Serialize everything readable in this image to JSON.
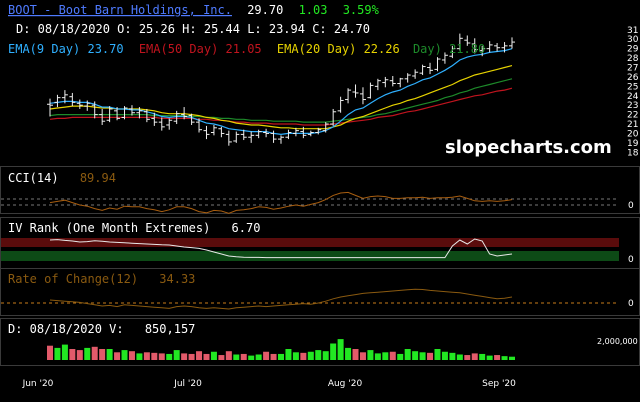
{
  "header": {
    "ticker_name": "BOOT - Boot Barn Holdings, Inc.",
    "last": "29.70",
    "change": "1.03",
    "change_pct": "3.59%",
    "date_line": "D: 08/18/2020 O: 25.26 H: 25.44 L: 23.94 C: 24.70"
  },
  "legend": {
    "ema9": "EMA(9 Day) 23.70",
    "ema50": "EMA(50 Day) 21.05",
    "ema20": "EMA(20 Day) 22.26",
    "ema100": "Day) 21.80"
  },
  "watermark": "slopecharts.com",
  "panels": {
    "cci": {
      "label": "CCI(14)",
      "value": "89.94",
      "axis": "0"
    },
    "iv": {
      "label": "IV Rank (One Month Extremes)",
      "value": "6.70",
      "axis": "0"
    },
    "roc": {
      "label": "Rate of Change(12)",
      "value": "34.33",
      "axis": "0"
    },
    "vol": {
      "label": "D: 08/18/2020 V:",
      "value": "850,157",
      "axis": "2,000,000"
    }
  },
  "colors": {
    "ema9": "#2fb0ff",
    "ema20": "#e6d200",
    "ema50": "#c0141e",
    "ema100": "#1d8a2a",
    "up": "#22e822",
    "down": "#e25a6a",
    "title": "#4f7bff"
  },
  "chart_data": {
    "type": "candlestick",
    "x_labels": [
      "Jun '20",
      "Jul '20",
      "Aug '20",
      "Sep '20"
    ],
    "y_ticks": [
      18,
      19,
      20,
      21,
      22,
      23,
      24,
      25,
      26,
      27,
      28,
      29,
      30,
      31
    ],
    "ylim": [
      17.5,
      31.3
    ],
    "ohlc": [
      [
        23.1,
        23.7,
        21.8,
        23.0
      ],
      [
        23.3,
        24.1,
        22.8,
        23.8
      ],
      [
        23.8,
        24.6,
        23.2,
        24.1
      ],
      [
        23.9,
        24.3,
        22.9,
        23.3
      ],
      [
        23.2,
        23.6,
        22.6,
        23.0
      ],
      [
        22.9,
        23.5,
        22.4,
        23.2
      ],
      [
        23.0,
        23.4,
        21.6,
        22.0
      ],
      [
        22.0,
        22.6,
        20.9,
        21.3
      ],
      [
        21.4,
        22.9,
        21.2,
        22.6
      ],
      [
        22.4,
        22.8,
        21.4,
        21.6
      ],
      [
        21.7,
        22.9,
        21.5,
        22.7
      ],
      [
        22.6,
        23.0,
        21.9,
        22.2
      ],
      [
        22.2,
        22.8,
        21.6,
        22.4
      ],
      [
        22.3,
        22.6,
        21.2,
        21.5
      ],
      [
        21.6,
        22.2,
        20.8,
        21.2
      ],
      [
        21.2,
        21.7,
        20.3,
        20.7
      ],
      [
        20.9,
        21.6,
        20.4,
        21.4
      ],
      [
        21.3,
        22.4,
        21.0,
        22.1
      ],
      [
        22.0,
        22.8,
        21.5,
        21.8
      ],
      [
        21.9,
        22.1,
        20.9,
        21.2
      ],
      [
        21.2,
        21.6,
        20.1,
        20.4
      ],
      [
        20.3,
        20.8,
        19.4,
        19.9
      ],
      [
        20.1,
        20.9,
        19.8,
        20.6
      ],
      [
        20.5,
        20.7,
        19.6,
        20.0
      ],
      [
        19.9,
        20.3,
        18.7,
        19.1
      ],
      [
        19.2,
        20.2,
        19.0,
        19.9
      ],
      [
        19.9,
        20.4,
        19.3,
        19.6
      ],
      [
        19.6,
        20.2,
        19.0,
        19.8
      ],
      [
        19.8,
        20.4,
        19.5,
        20.2
      ],
      [
        20.1,
        20.5,
        19.6,
        20.0
      ],
      [
        20.0,
        20.3,
        19.0,
        19.4
      ],
      [
        19.4,
        19.8,
        18.9,
        19.6
      ],
      [
        19.6,
        20.4,
        19.4,
        20.1
      ],
      [
        20.0,
        20.6,
        19.7,
        20.3
      ],
      [
        20.2,
        20.7,
        19.5,
        19.8
      ],
      [
        19.9,
        20.3,
        19.7,
        20.1
      ],
      [
        20.1,
        20.6,
        19.9,
        20.4
      ],
      [
        20.3,
        21.2,
        20.1,
        21.0
      ],
      [
        21.0,
        22.6,
        20.8,
        22.3
      ],
      [
        22.4,
        23.9,
        22.2,
        23.5
      ],
      [
        23.6,
        24.8,
        23.2,
        24.6
      ],
      [
        24.4,
        25.2,
        23.8,
        24.3
      ],
      [
        24.2,
        24.9,
        23.1,
        23.6
      ],
      [
        23.8,
        25.4,
        23.7,
        25.1
      ],
      [
        25.0,
        25.8,
        24.6,
        25.6
      ],
      [
        25.4,
        26.0,
        24.9,
        25.7
      ],
      [
        25.6,
        26.1,
        25.0,
        25.3
      ],
      [
        25.3,
        25.9,
        24.9,
        25.8
      ],
      [
        25.8,
        26.4,
        25.4,
        26.2
      ],
      [
        26.1,
        26.8,
        25.8,
        26.5
      ],
      [
        26.4,
        27.3,
        26.2,
        27.1
      ],
      [
        27.0,
        27.5,
        26.3,
        26.7
      ],
      [
        26.8,
        28.1,
        26.6,
        27.9
      ],
      [
        27.8,
        28.6,
        27.4,
        28.3
      ],
      [
        28.2,
        29.3,
        28.0,
        29.0
      ],
      [
        29.0,
        30.6,
        28.8,
        30.1
      ],
      [
        29.9,
        30.4,
        29.3,
        29.6
      ],
      [
        29.5,
        30.1,
        28.5,
        28.9
      ],
      [
        28.8,
        29.3,
        28.2,
        29.0
      ],
      [
        29.0,
        29.8,
        28.6,
        29.4
      ],
      [
        29.3,
        29.6,
        28.7,
        29.1
      ],
      [
        29.1,
        29.7,
        28.6,
        29.3
      ],
      [
        29.3,
        30.2,
        29.0,
        29.7
      ]
    ],
    "ema9": [
      23.2,
      23.3,
      23.4,
      23.4,
      23.3,
      23.3,
      23.1,
      22.8,
      22.8,
      22.6,
      22.6,
      22.5,
      22.5,
      22.3,
      22.1,
      21.8,
      21.7,
      21.8,
      21.8,
      21.7,
      21.4,
      21.1,
      21.0,
      20.8,
      20.5,
      20.4,
      20.3,
      20.2,
      20.2,
      20.2,
      20.0,
      19.9,
      20.0,
      20.0,
      20.0,
      20.0,
      20.1,
      20.3,
      20.7,
      21.3,
      22.0,
      22.5,
      22.7,
      23.2,
      23.7,
      24.1,
      24.4,
      24.6,
      25.0,
      25.3,
      25.7,
      25.9,
      26.3,
      26.7,
      27.2,
      27.8,
      28.1,
      28.3,
      28.4,
      28.6,
      28.7,
      28.8,
      29.0
    ],
    "ema20": [
      22.6,
      22.7,
      22.8,
      22.9,
      22.9,
      22.9,
      22.8,
      22.7,
      22.7,
      22.6,
      22.6,
      22.6,
      22.6,
      22.5,
      22.4,
      22.2,
      22.1,
      22.1,
      22.1,
      22.0,
      21.9,
      21.7,
      21.6,
      21.4,
      21.3,
      21.1,
      21.0,
      20.9,
      20.9,
      20.8,
      20.7,
      20.6,
      20.6,
      20.5,
      20.5,
      20.5,
      20.5,
      20.5,
      20.7,
      20.9,
      21.3,
      21.6,
      21.8,
      22.1,
      22.4,
      22.7,
      23.0,
      23.2,
      23.5,
      23.7,
      24.0,
      24.3,
      24.6,
      24.9,
      25.2,
      25.6,
      25.9,
      26.2,
      26.4,
      26.6,
      26.8,
      27.0,
      27.2
    ],
    "ema50": [
      21.5,
      21.6,
      21.6,
      21.7,
      21.7,
      21.7,
      21.7,
      21.7,
      21.7,
      21.7,
      21.7,
      21.7,
      21.7,
      21.7,
      21.7,
      21.6,
      21.6,
      21.6,
      21.6,
      21.6,
      21.5,
      21.5,
      21.4,
      21.4,
      21.3,
      21.2,
      21.2,
      21.1,
      21.1,
      21.1,
      21.0,
      21.0,
      21.0,
      21.0,
      20.9,
      20.9,
      20.9,
      20.9,
      21.0,
      21.1,
      21.2,
      21.3,
      21.4,
      21.5,
      21.7,
      21.8,
      21.9,
      22.1,
      22.3,
      22.4,
      22.6,
      22.8,
      23.0,
      23.2,
      23.4,
      23.6,
      23.8,
      24.0,
      24.1,
      24.3,
      24.5,
      24.6,
      24.8
    ],
    "ema100": [
      21.9,
      22.0,
      22.0,
      22.0,
      22.0,
      22.0,
      22.0,
      22.0,
      22.0,
      22.0,
      22.0,
      22.0,
      22.0,
      22.0,
      21.9,
      21.9,
      21.9,
      21.9,
      21.9,
      21.8,
      21.8,
      21.7,
      21.7,
      21.6,
      21.6,
      21.5,
      21.5,
      21.4,
      21.4,
      21.4,
      21.3,
      21.3,
      21.3,
      21.3,
      21.2,
      21.2,
      21.2,
      21.2,
      21.3,
      21.4,
      21.5,
      21.6,
      21.7,
      21.8,
      22.0,
      22.1,
      22.3,
      22.5,
      22.7,
      22.9,
      23.1,
      23.3,
      23.5,
      23.8,
      24.0,
      24.3,
      24.5,
      24.8,
      25.0,
      25.2,
      25.4,
      25.6,
      25.8
    ],
    "cci": [
      40,
      60,
      80,
      40,
      0,
      -20,
      -60,
      -90,
      -50,
      -70,
      -20,
      -30,
      -30,
      -60,
      -80,
      -110,
      -80,
      -30,
      -30,
      -60,
      -110,
      -130,
      -90,
      -100,
      -140,
      -90,
      -80,
      -60,
      -30,
      -40,
      -70,
      -50,
      -20,
      0,
      -20,
      10,
      40,
      90,
      160,
      200,
      210,
      160,
      110,
      140,
      150,
      140,
      110,
      110,
      120,
      120,
      130,
      110,
      120,
      120,
      130,
      150,
      110,
      70,
      60,
      70,
      60,
      70,
      90
    ],
    "iv_rank": [
      90,
      92,
      88,
      85,
      80,
      82,
      86,
      84,
      80,
      78,
      76,
      74,
      72,
      70,
      68,
      66,
      65,
      60,
      55,
      52,
      48,
      40,
      30,
      20,
      10,
      6,
      4,
      3,
      3,
      2,
      2,
      2,
      2,
      2,
      2,
      2,
      2,
      2,
      2,
      2,
      2,
      2,
      2,
      2,
      2,
      2,
      2,
      2,
      2,
      2,
      2,
      2,
      2,
      2,
      60,
      90,
      70,
      95,
      85,
      20,
      10,
      15,
      20
    ],
    "roc": [
      10,
      8,
      6,
      4,
      2,
      -2,
      -6,
      -10,
      -8,
      -12,
      -6,
      -8,
      -10,
      -12,
      -14,
      -16,
      -18,
      -12,
      -10,
      -12,
      -16,
      -18,
      -16,
      -18,
      -20,
      -16,
      -14,
      -12,
      -10,
      -12,
      -10,
      -8,
      -6,
      -4,
      -2,
      -4,
      0,
      6,
      14,
      20,
      24,
      28,
      32,
      34,
      36,
      38,
      40,
      42,
      44,
      46,
      45,
      42,
      40,
      38,
      36,
      34,
      30,
      26,
      22,
      18,
      14,
      16,
      20
    ],
    "volume": [
      1.3,
      1.1,
      1.4,
      1.0,
      0.9,
      1.1,
      1.2,
      1.0,
      1.0,
      0.7,
      0.9,
      0.8,
      0.6,
      0.7,
      0.65,
      0.6,
      0.55,
      0.9,
      0.6,
      0.55,
      0.8,
      0.55,
      0.75,
      0.45,
      0.8,
      0.5,
      0.55,
      0.4,
      0.5,
      0.75,
      0.55,
      0.55,
      1.0,
      0.7,
      0.65,
      0.75,
      0.9,
      0.8,
      1.5,
      1.9,
      1.1,
      1.0,
      0.7,
      0.9,
      0.6,
      0.7,
      0.75,
      0.55,
      1.0,
      0.8,
      0.7,
      0.65,
      1.0,
      0.75,
      0.65,
      0.5,
      0.45,
      0.6,
      0.55,
      0.4,
      0.45,
      0.35,
      0.3
    ],
    "vol_max": 2.0
  }
}
